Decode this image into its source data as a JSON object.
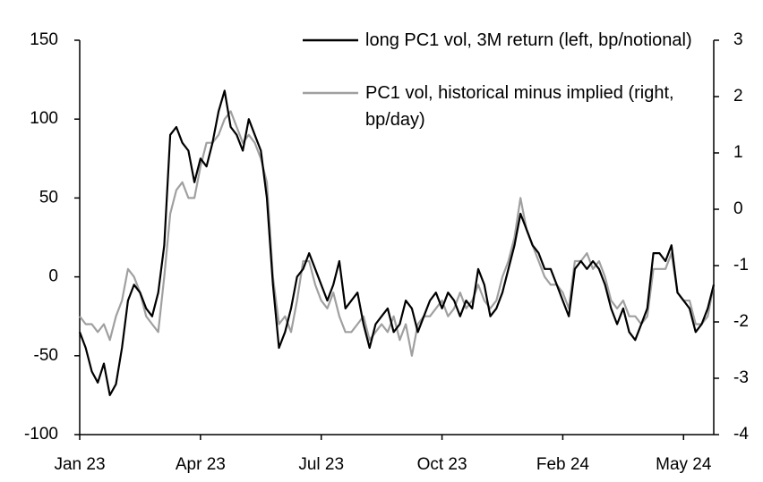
{
  "chart_data": {
    "type": "line",
    "categories": [
      "Jan 23",
      null,
      null,
      null,
      null,
      null,
      null,
      null,
      null,
      null,
      null,
      null,
      null,
      null,
      null,
      null,
      null,
      null,
      null,
      null,
      "Apr 23",
      null,
      null,
      null,
      null,
      null,
      null,
      null,
      null,
      null,
      null,
      null,
      null,
      null,
      null,
      null,
      null,
      null,
      null,
      null,
      "Jul 23",
      null,
      null,
      null,
      null,
      null,
      null,
      null,
      null,
      null,
      null,
      null,
      null,
      null,
      null,
      null,
      null,
      null,
      null,
      null,
      "Oct 23",
      null,
      null,
      null,
      null,
      null,
      null,
      null,
      null,
      null,
      null,
      null,
      null,
      null,
      null,
      null,
      null,
      null,
      null,
      null,
      "Feb 24",
      null,
      null,
      null,
      null,
      null,
      null,
      null,
      null,
      null,
      null,
      null,
      null,
      null,
      null,
      null,
      null,
      null,
      null,
      null,
      "May 24",
      null,
      null,
      null,
      null,
      null
    ],
    "series": [
      {
        "name": "long PC1 vol, 3M return (left, bp/notional)",
        "color": "#000000",
        "axis": "y",
        "values": [
          -35,
          -45,
          -60,
          -67,
          -55,
          -75,
          -68,
          -45,
          -15,
          -5,
          -10,
          -20,
          -25,
          -10,
          20,
          90,
          95,
          85,
          80,
          60,
          75,
          70,
          85,
          105,
          118,
          95,
          90,
          80,
          100,
          90,
          80,
          50,
          -5,
          -45,
          -35,
          -20,
          0,
          5,
          15,
          5,
          -5,
          -15,
          -5,
          10,
          -20,
          -15,
          -10,
          -30,
          -45,
          -30,
          -25,
          -20,
          -35,
          -30,
          -15,
          -20,
          -35,
          -25,
          -15,
          -10,
          -20,
          -10,
          -15,
          -25,
          -15,
          -20,
          5,
          -5,
          -25,
          -20,
          -10,
          5,
          20,
          40,
          30,
          20,
          15,
          5,
          5,
          -5,
          -15,
          -25,
          5,
          10,
          5,
          10,
          5,
          -5,
          -20,
          -30,
          -20,
          -35,
          -40,
          -30,
          -20,
          15,
          15,
          10,
          20,
          -10,
          -15,
          -20,
          -35,
          -30,
          -20,
          -5
        ]
      },
      {
        "name": "PC1 vol, historical minus implied (right, bp/day)",
        "color": "#a0a0a0",
        "axis": "y2",
        "values": [
          -1.9,
          -2.04,
          -2.04,
          -2.18,
          -2.04,
          -2.32,
          -1.9,
          -1.62,
          -1.06,
          -1.2,
          -1.48,
          -1.9,
          -2.04,
          -2.18,
          -1.2,
          -0.08,
          0.34,
          0.48,
          0.2,
          0.2,
          0.76,
          1.18,
          1.18,
          1.32,
          1.6,
          1.74,
          1.46,
          1.18,
          1.32,
          1.18,
          0.9,
          0.48,
          -1.2,
          -2.04,
          -1.9,
          -2.18,
          -1.62,
          -0.92,
          -0.92,
          -1.34,
          -1.62,
          -1.76,
          -1.48,
          -1.9,
          -2.18,
          -2.18,
          -2.04,
          -1.9,
          -2.32,
          -2.18,
          -2.04,
          -2.18,
          -1.9,
          -2.32,
          -2.04,
          -2.6,
          -2.04,
          -1.9,
          -1.9,
          -1.76,
          -1.62,
          -1.9,
          -1.76,
          -1.48,
          -1.76,
          -1.62,
          -1.34,
          -1.62,
          -1.76,
          -1.62,
          -1.2,
          -0.92,
          -0.5,
          0.2,
          -0.36,
          -0.64,
          -0.92,
          -1.2,
          -1.34,
          -1.34,
          -1.48,
          -1.76,
          -0.92,
          -0.92,
          -0.78,
          -1.06,
          -0.92,
          -1.2,
          -1.62,
          -1.76,
          -1.62,
          -1.9,
          -1.9,
          -2.04,
          -1.9,
          -1.06,
          -1.06,
          -1.06,
          -0.78,
          -1.48,
          -1.62,
          -1.62,
          -2.04,
          -2.04,
          -1.9,
          -1.34
        ]
      }
    ],
    "ylim": [
      -100,
      150
    ],
    "yticks": [
      -100,
      -50,
      0,
      50,
      100,
      150
    ],
    "y2lim": [
      -4,
      3
    ],
    "y2ticks": [
      -4,
      -3,
      -2,
      -1,
      0,
      1,
      2,
      3
    ]
  }
}
